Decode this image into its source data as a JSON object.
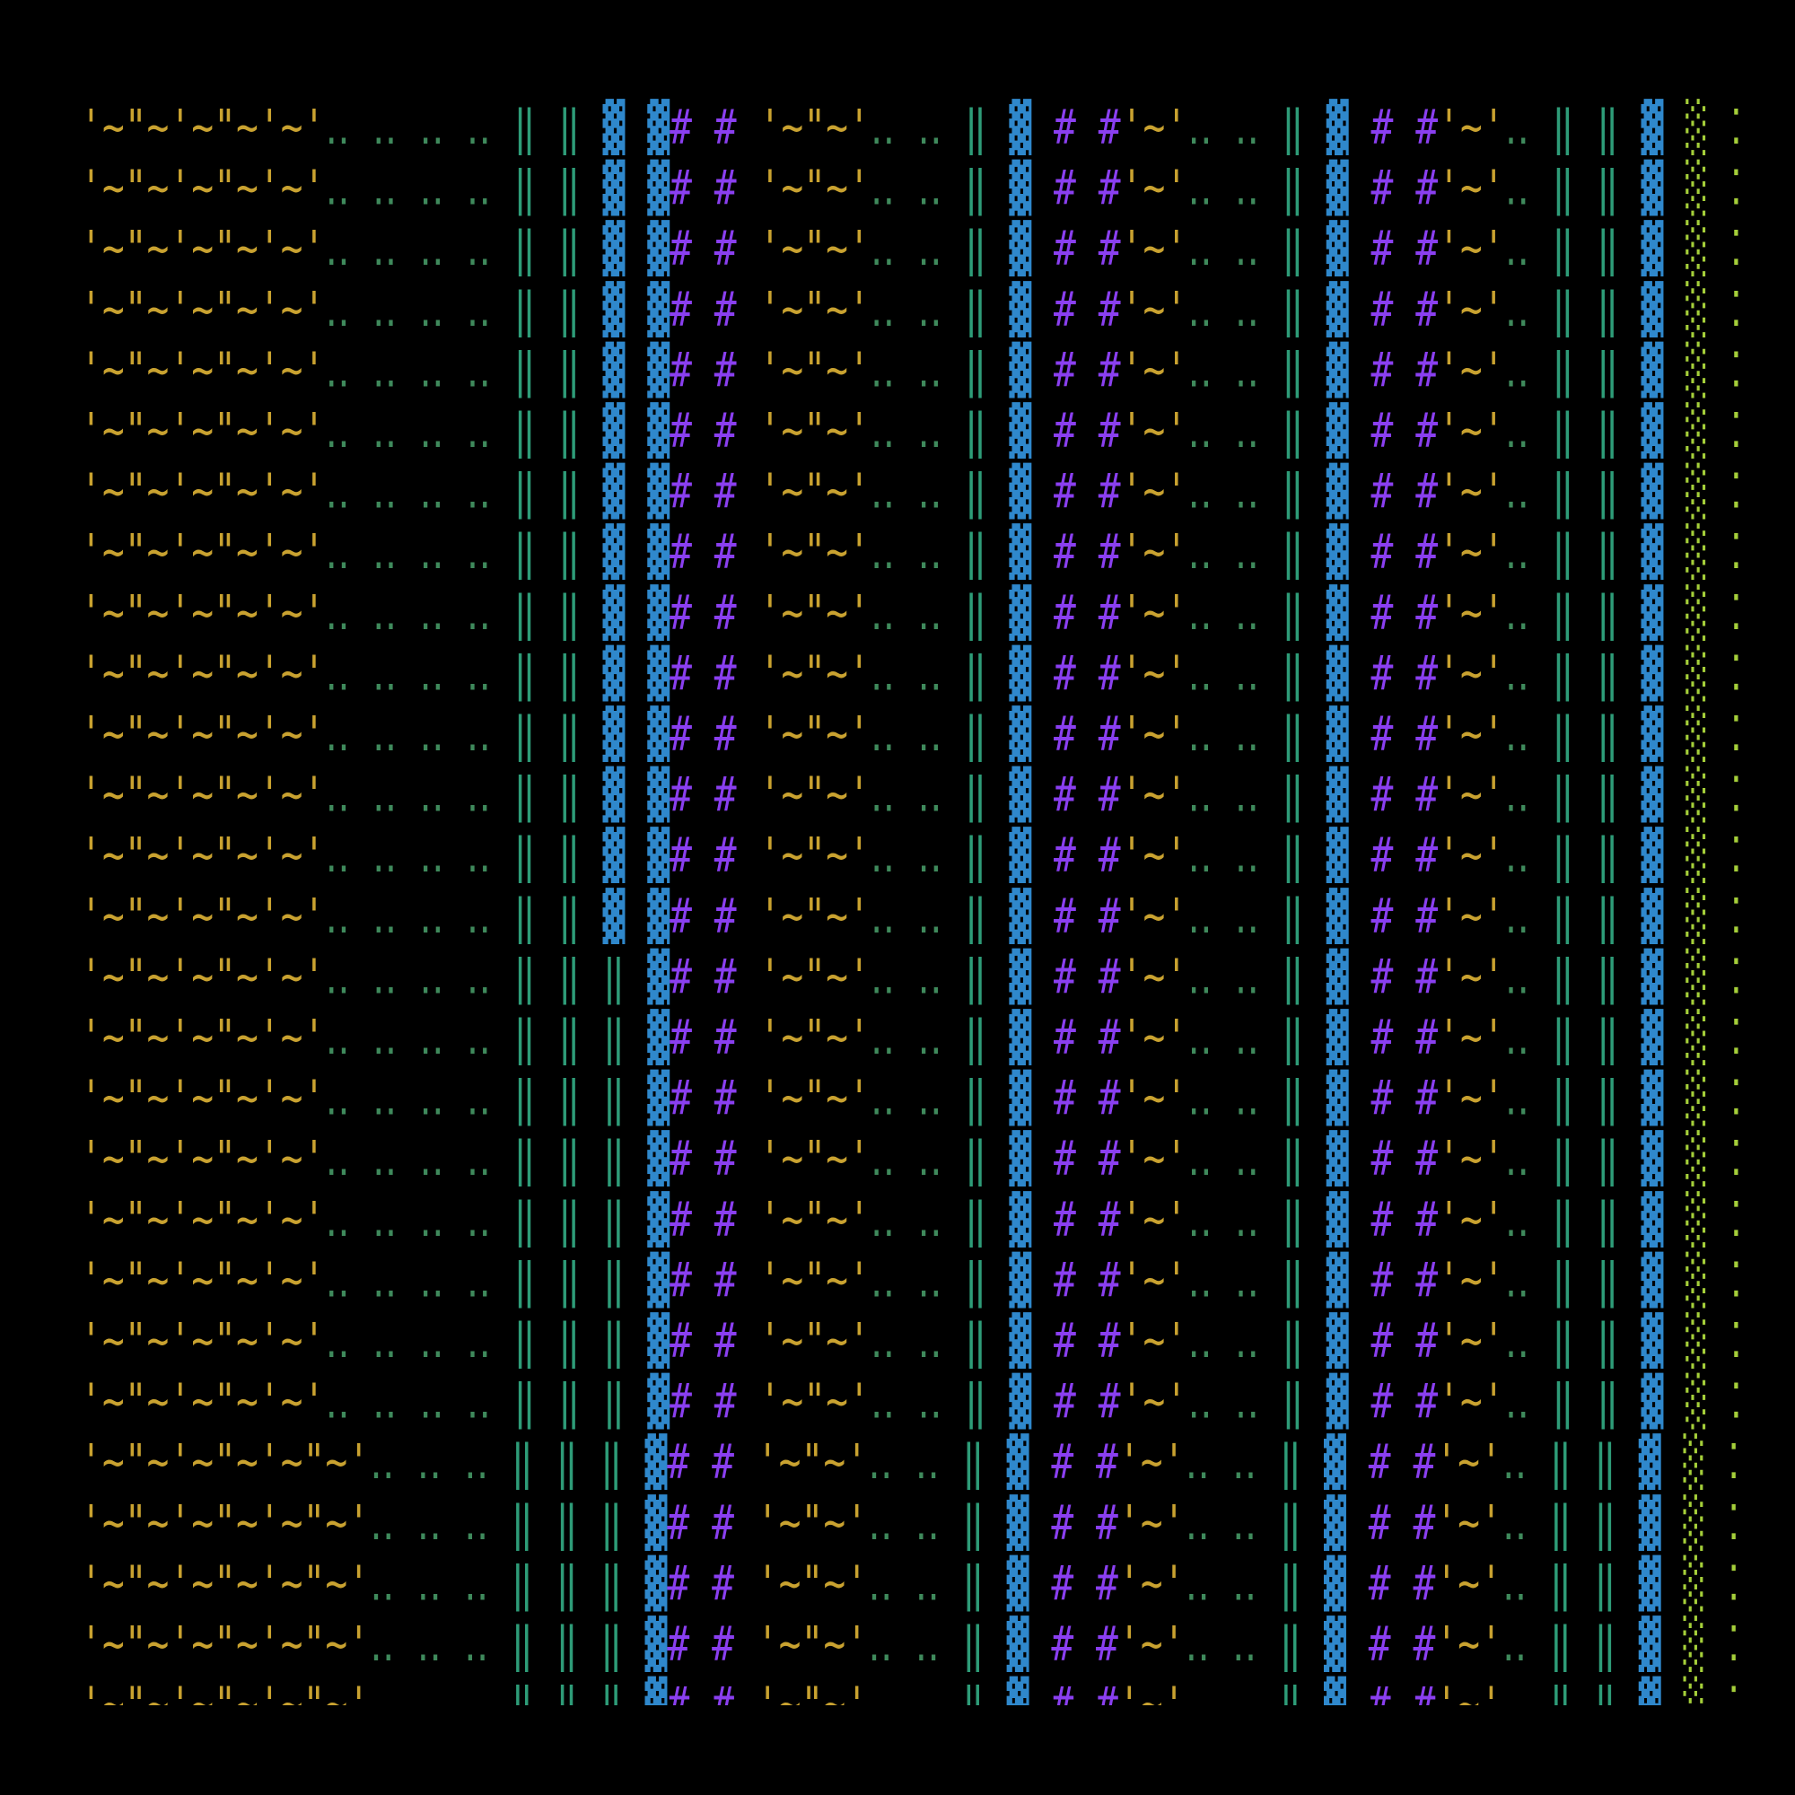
{
  "rows": [
    "'~\"~'~\"~'~'‥ ‥ ‥ ‥ ‖ ‖ ▓ ▓# # '~\"~'‥ ‥ ‖ ▓ # #'~'‥ ‥ ‖ ▓ # #'~'‥ ‖ ‖ ▓ ░ ⁚",
    "'~\"~'~\"~'~'‥ ‥ ‥ ‥ ‖ ‖ ▓ ▓# # '~\"~'‥ ‥ ‖ ▓ # #'~'‥ ‥ ‖ ▓ # #'~'‥ ‖ ‖ ▓ ░ ⁚",
    "'~\"~'~\"~'~'‥ ‥ ‥ ‥ ‖ ‖ ▓ ▓# # '~\"~'‥ ‥ ‖ ▓ # #'~'‥ ‥ ‖ ▓ # #'~'‥ ‖ ‖ ▓ ░ ⁚",
    "'~\"~'~\"~'~'‥ ‥ ‥ ‥ ‖ ‖ ▓ ▓# # '~\"~'‥ ‥ ‖ ▓ # #'~'‥ ‥ ‖ ▓ # #'~'‥ ‖ ‖ ▓ ░ ⁚",
    "'~\"~'~\"~'~'‥ ‥ ‥ ‥ ‖ ‖ ▓ ▓# # '~\"~'‥ ‥ ‖ ▓ # #'~'‥ ‥ ‖ ▓ # #'~'‥ ‖ ‖ ▓ ░ ⁚",
    "'~\"~'~\"~'~'‥ ‥ ‥ ‥ ‖ ‖ ▓ ▓# # '~\"~'‥ ‥ ‖ ▓ # #'~'‥ ‥ ‖ ▓ # #'~'‥ ‖ ‖ ▓ ░ ⁚",
    "'~\"~'~\"~'~'‥ ‥ ‥ ‥ ‖ ‖ ▓ ▓# # '~\"~'‥ ‥ ‖ ▓ # #'~'‥ ‥ ‖ ▓ # #'~'‥ ‖ ‖ ▓ ░ ⁚",
    "'~\"~'~\"~'~'‥ ‥ ‥ ‥ ‖ ‖ ▓ ▓# # '~\"~'‥ ‥ ‖ ▓ # #'~'‥ ‥ ‖ ▓ # #'~'‥ ‖ ‖ ▓ ░ ⁚",
    "'~\"~'~\"~'~'‥ ‥ ‥ ‥ ‖ ‖ ▓ ▓# # '~\"~'‥ ‥ ‖ ▓ # #'~'‥ ‥ ‖ ▓ # #'~'‥ ‖ ‖ ▓ ░ ⁚",
    "'~\"~'~\"~'~'‥ ‥ ‥ ‥ ‖ ‖ ▓ ▓# # '~\"~'‥ ‥ ‖ ▓ # #'~'‥ ‥ ‖ ▓ # #'~'‥ ‖ ‖ ▓ ░ ⁚",
    "'~\"~'~\"~'~'‥ ‥ ‥ ‥ ‖ ‖ ▓ ▓# # '~\"~'‥ ‥ ‖ ▓ # #'~'‥ ‥ ‖ ▓ # #'~'‥ ‖ ‖ ▓ ░ ⁚",
    "'~\"~'~\"~'~'‥ ‥ ‥ ‥ ‖ ‖ ▓ ▓# # '~\"~'‥ ‥ ‖ ▓ # #'~'‥ ‥ ‖ ▓ # #'~'‥ ‖ ‖ ▓ ░ ⁚",
    "'~\"~'~\"~'~'‥ ‥ ‥ ‥ ‖ ‖ ▓ ▓# # '~\"~'‥ ‥ ‖ ▓ # #'~'‥ ‥ ‖ ▓ # #'~'‥ ‖ ‖ ▓ ░ ⁚",
    "'~\"~'~\"~'~'‥ ‥ ‥ ‥ ‖ ‖ ▓ ▓# # '~\"~'‥ ‥ ‖ ▓ # #'~'‥ ‥ ‖ ▓ # #'~'‥ ‖ ‖ ▓ ░ ⁚",
    "'~\"~'~\"~'~'‥ ‥ ‥ ‥ ‖ ‖ ‖ ▓# # '~\"~'‥ ‥ ‖ ▓ # #'~'‥ ‥ ‖ ▓ # #'~'‥ ‖ ‖ ▓ ░ ⁚",
    "'~\"~'~\"~'~'‥ ‥ ‥ ‥ ‖ ‖ ‖ ▓# # '~\"~'‥ ‥ ‖ ▓ # #'~'‥ ‥ ‖ ▓ # #'~'‥ ‖ ‖ ▓ ░ ⁚",
    "'~\"~'~\"~'~'‥ ‥ ‥ ‥ ‖ ‖ ‖ ▓# # '~\"~'‥ ‥ ‖ ▓ # #'~'‥ ‥ ‖ ▓ # #'~'‥ ‖ ‖ ▓ ░ ⁚",
    "'~\"~'~\"~'~'‥ ‥ ‥ ‥ ‖ ‖ ‖ ▓# # '~\"~'‥ ‥ ‖ ▓ # #'~'‥ ‥ ‖ ▓ # #'~'‥ ‖ ‖ ▓ ░ ⁚",
    "'~\"~'~\"~'~'‥ ‥ ‥ ‥ ‖ ‖ ‖ ▓# # '~\"~'‥ ‥ ‖ ▓ # #'~'‥ ‥ ‖ ▓ # #'~'‥ ‖ ‖ ▓ ░ ⁚",
    "'~\"~'~\"~'~'‥ ‥ ‥ ‥ ‖ ‖ ‖ ▓# # '~\"~'‥ ‥ ‖ ▓ # #'~'‥ ‥ ‖ ▓ # #'~'‥ ‖ ‖ ▓ ░ ⁚",
    "'~\"~'~\"~'~'‥ ‥ ‥ ‥ ‖ ‖ ‖ ▓# # '~\"~'‥ ‥ ‖ ▓ # #'~'‥ ‥ ‖ ▓ # #'~'‥ ‖ ‖ ▓ ░ ⁚",
    "'~\"~'~\"~'~'‥ ‥ ‥ ‥ ‖ ‖ ‖ ▓# # '~\"~'‥ ‥ ‖ ▓ # #'~'‥ ‥ ‖ ▓ # #'~'‥ ‖ ‖ ▓ ░ ⁚",
    "'~\"~'~\"~'~\"~'‥ ‥ ‥ ‖ ‖ ‖ ▓# # '~\"~'‥ ‥ ‖ ▓ # #'~'‥ ‥ ‖ ▓ # #'~'‥ ‖ ‖ ▓ ░ ⁚",
    "'~\"~'~\"~'~\"~'‥ ‥ ‥ ‖ ‖ ‖ ▓# # '~\"~'‥ ‥ ‖ ▓ # #'~'‥ ‥ ‖ ▓ # #'~'‥ ‖ ‖ ▓ ░ ⁚",
    "'~\"~'~\"~'~\"~'‥ ‥ ‥ ‖ ‖ ‖ ▓# # '~\"~'‥ ‥ ‖ ▓ # #'~'‥ ‥ ‖ ▓ # #'~'‥ ‖ ‖ ▓ ░ ⁚",
    "'~\"~'~\"~'~\"~'‥ ‥ ‥ ‖ ‖ ‖ ▓# # '~\"~'‥ ‥ ‖ ▓ # #'~'‥ ‥ ‖ ▓ # #'~'‥ ‖ ‖ ▓ ░ ⁚",
    "'~\"~'~\"~'~\"~'‥ ‥ ‥ ‖ ‖ ‖ ▓# # '~\"~'‥ ‥ ‖ ▓ # #'~'‥ ‥ ‖ ▓ # #'~'‥ ‖ ‖ ▓ ░ ⁚"
  ]
}
